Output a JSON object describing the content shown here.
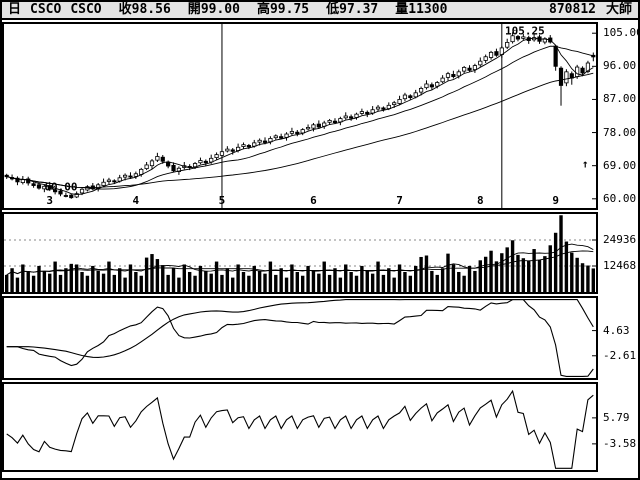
{
  "title_bar": {
    "period": "日",
    "symbol": "CSCO",
    "symbol_repeat": "CSCO",
    "fields": [
      {
        "label": "收",
        "value": "98.56"
      },
      {
        "label": "開",
        "value": "99.00"
      },
      {
        "label": "高",
        "value": "99.75"
      },
      {
        "label": "低",
        "value": "97.37"
      },
      {
        "label": "量",
        "value": "11300"
      }
    ],
    "date": "870812",
    "brand": "大師"
  },
  "chart_data": [
    {
      "type": "candlestick",
      "name": "daily-price",
      "ylim": [
        57.5,
        107.5
      ],
      "ma_periods": [
        5,
        15,
        45
      ],
      "vlines_days": [
        40,
        92
      ],
      "month_labels": [
        {
          "label": "3",
          "day": 8
        },
        {
          "label": "4",
          "day": 24
        },
        {
          "label": "5",
          "day": 40
        },
        {
          "label": "6",
          "day": 57
        },
        {
          "label": "7",
          "day": 73
        },
        {
          "label": "8",
          "day": 88
        },
        {
          "label": "9",
          "day": 102
        }
      ],
      "annotations": [
        {
          "text": "105.25",
          "day": 92.6,
          "price": 104.6,
          "anchor": "start"
        },
        {
          "text": "60.00",
          "day": 7,
          "price": 62.3,
          "anchor": "start"
        },
        {
          "text": "↑",
          "day": 107.5,
          "price": 68.5,
          "anchor": "middle"
        }
      ],
      "y_axis": [
        {
          "text": "105.00",
          "value": 105
        },
        {
          "text": "96.00",
          "value": 96
        },
        {
          "text": "87.00",
          "value": 87
        },
        {
          "text": "78.00",
          "value": 78
        },
        {
          "text": "69.00",
          "value": 69
        },
        {
          "text": "60.00",
          "value": 60
        }
      ],
      "ohlc": [
        [
          66.4,
          66.8,
          65.4,
          66.0
        ],
        [
          65.8,
          66.6,
          65.0,
          65.4
        ],
        [
          65.6,
          66.1,
          63.7,
          64.6
        ],
        [
          64.4,
          66.2,
          63.9,
          65.2
        ],
        [
          65.4,
          66.0,
          63.6,
          64.3
        ],
        [
          64.1,
          64.5,
          63.0,
          63.6
        ],
        [
          63.8,
          64.6,
          62.5,
          62.9
        ],
        [
          62.7,
          63.9,
          61.8,
          63.4
        ],
        [
          63.6,
          64.6,
          62.1,
          62.6
        ],
        [
          62.4,
          63.0,
          61.2,
          61.9
        ],
        [
          62.1,
          62.5,
          60.7,
          61.3
        ],
        [
          60.9,
          61.7,
          60.4,
          60.8
        ],
        [
          61.0,
          61.3,
          60.0,
          60.3
        ],
        [
          60.5,
          62.0,
          60.2,
          61.4
        ],
        [
          61.6,
          63.2,
          61.0,
          62.6
        ],
        [
          62.4,
          63.7,
          62.0,
          63.3
        ],
        [
          63.5,
          64.3,
          62.3,
          62.7
        ],
        [
          62.9,
          64.3,
          62.0,
          63.8
        ],
        [
          63.6,
          65.5,
          63.1,
          64.5
        ],
        [
          64.7,
          65.7,
          64.0,
          65.1
        ],
        [
          64.9,
          65.3,
          64.0,
          64.6
        ],
        [
          64.8,
          66.5,
          64.4,
          65.7
        ],
        [
          65.9,
          66.9,
          65.0,
          66.4
        ],
        [
          66.2,
          67.2,
          65.4,
          65.9
        ],
        [
          66.1,
          67.4,
          65.4,
          66.8
        ],
        [
          66.6,
          68.4,
          66.0,
          68.0
        ],
        [
          68.2,
          70.0,
          67.8,
          69.2
        ],
        [
          69.0,
          70.8,
          68.1,
          70.3
        ],
        [
          70.5,
          72.5,
          70.0,
          71.5
        ],
        [
          71.3,
          71.9,
          69.5,
          70.2
        ],
        [
          70.0,
          70.4,
          68.3,
          68.9
        ],
        [
          69.1,
          69.9,
          67.2,
          67.6
        ],
        [
          67.4,
          68.8,
          66.5,
          68.3
        ],
        [
          68.5,
          70.0,
          68.0,
          69.0
        ],
        [
          68.8,
          69.4,
          67.8,
          68.5
        ],
        [
          68.7,
          70.0,
          68.1,
          69.6
        ],
        [
          69.8,
          71.2,
          69.4,
          70.4
        ],
        [
          70.2,
          70.7,
          68.9,
          69.8
        ],
        [
          70.0,
          72.0,
          69.5,
          71.0
        ],
        [
          71.2,
          72.6,
          70.5,
          72.0
        ],
        [
          71.8,
          73.2,
          71.2,
          72.8
        ],
        [
          73.0,
          74.3,
          72.6,
          73.5
        ],
        [
          73.3,
          73.8,
          72.0,
          72.9
        ],
        [
          73.1,
          75.0,
          72.6,
          74.0
        ],
        [
          74.2,
          75.3,
          73.5,
          74.7
        ],
        [
          74.5,
          74.9,
          73.5,
          74.1
        ],
        [
          74.3,
          76.0,
          73.9,
          75.2
        ],
        [
          75.4,
          76.4,
          74.5,
          75.9
        ],
        [
          75.7,
          76.7,
          74.8,
          75.3
        ],
        [
          75.5,
          77.0,
          74.8,
          76.4
        ],
        [
          76.6,
          77.5,
          76.0,
          77.1
        ],
        [
          76.9,
          77.7,
          76.1,
          76.5
        ],
        [
          76.7,
          78.1,
          75.8,
          77.6
        ],
        [
          77.8,
          79.3,
          77.3,
          78.3
        ],
        [
          78.1,
          78.7,
          77.0,
          77.7
        ],
        [
          77.9,
          79.2,
          77.3,
          78.8
        ],
        [
          79.0,
          80.2,
          78.6,
          79.4
        ],
        [
          79.2,
          80.6,
          78.3,
          80.1
        ],
        [
          80.3,
          81.3,
          79.0,
          79.5
        ],
        [
          79.7,
          81.2,
          79.0,
          80.6
        ],
        [
          80.8,
          81.7,
          80.2,
          81.3
        ],
        [
          81.1,
          81.9,
          80.3,
          80.7
        ],
        [
          80.9,
          82.3,
          80.0,
          81.8
        ],
        [
          82.0,
          83.5,
          81.5,
          82.5
        ],
        [
          82.3,
          82.9,
          81.2,
          81.9
        ],
        [
          82.1,
          83.4,
          81.5,
          83.0
        ],
        [
          83.2,
          84.5,
          82.8,
          83.7
        ],
        [
          83.5,
          84.0,
          82.2,
          83.1
        ],
        [
          83.3,
          85.2,
          82.8,
          84.2
        ],
        [
          84.4,
          85.5,
          83.7,
          84.9
        ],
        [
          84.7,
          85.1,
          83.7,
          84.3
        ],
        [
          84.5,
          86.2,
          84.1,
          85.4
        ],
        [
          85.6,
          86.6,
          84.7,
          86.1
        ],
        [
          85.9,
          88.0,
          85.4,
          87.0
        ],
        [
          87.2,
          88.8,
          86.5,
          88.2
        ],
        [
          88.0,
          88.4,
          86.9,
          87.5
        ],
        [
          87.7,
          89.6,
          87.3,
          88.8
        ],
        [
          89.0,
          90.5,
          88.1,
          90.0
        ],
        [
          90.2,
          92.2,
          89.7,
          91.2
        ],
        [
          91.0,
          91.6,
          89.7,
          90.4
        ],
        [
          90.6,
          92.0,
          90.0,
          91.6
        ],
        [
          91.8,
          93.6,
          91.4,
          92.8
        ],
        [
          93.0,
          94.5,
          92.1,
          94.0
        ],
        [
          93.8,
          94.8,
          92.7,
          93.2
        ],
        [
          93.4,
          95.1,
          92.7,
          94.5
        ],
        [
          94.7,
          96.1,
          94.1,
          95.7
        ],
        [
          95.5,
          96.3,
          94.5,
          94.9
        ],
        [
          95.1,
          96.7,
          94.2,
          96.2
        ],
        [
          96.4,
          98.4,
          95.9,
          97.4
        ],
        [
          97.6,
          99.2,
          96.9,
          98.6
        ],
        [
          98.4,
          100.2,
          97.8,
          99.8
        ],
        [
          100.0,
          100.8,
          98.6,
          99.0
        ],
        [
          99.2,
          101.5,
          98.3,
          101.0
        ],
        [
          101.2,
          103.5,
          100.7,
          102.5
        ],
        [
          102.7,
          105.25,
          102.2,
          104.3
        ],
        [
          104.1,
          104.5,
          102.8,
          103.4
        ],
        [
          103.6,
          104.8,
          103.2,
          104.0
        ],
        [
          103.8,
          104.3,
          102.1,
          103.0
        ],
        [
          103.2,
          104.8,
          102.7,
          103.8
        ],
        [
          104.0,
          104.6,
          102.1,
          102.8
        ],
        [
          102.6,
          103.9,
          102.0,
          103.5
        ],
        [
          103.7,
          104.5,
          102.2,
          102.6
        ],
        [
          101.5,
          101.8,
          94.8,
          96.0
        ],
        [
          95.5,
          96.0,
          85.3,
          90.8
        ],
        [
          91.5,
          95.2,
          90.6,
          94.5
        ],
        [
          94.0,
          94.6,
          91.0,
          92.8
        ],
        [
          93.2,
          96.4,
          92.6,
          95.8
        ],
        [
          95.5,
          96.0,
          93.3,
          94.2
        ],
        [
          94.6,
          97.5,
          94.1,
          96.9
        ],
        [
          99.0,
          99.75,
          97.37,
          98.56
        ]
      ]
    },
    {
      "type": "bar",
      "name": "volume",
      "ylim": [
        0,
        37404
      ],
      "ma_periods": [
        8,
        20
      ],
      "y_axis": [
        {
          "text": "24936",
          "value": 24936
        },
        {
          "text": "12468",
          "value": 12468
        }
      ],
      "values": [
        8200,
        11400,
        6900,
        13200,
        9600,
        7800,
        12500,
        10100,
        8800,
        14600,
        8200,
        11400,
        13500,
        13200,
        9600,
        7800,
        12500,
        10100,
        8800,
        14600,
        8200,
        11400,
        6900,
        13200,
        9600,
        7800,
        16500,
        18200,
        15800,
        12900,
        8200,
        11400,
        6900,
        13200,
        9600,
        7800,
        12500,
        10100,
        8800,
        14600,
        8200,
        11400,
        6900,
        13200,
        9600,
        7800,
        12500,
        10100,
        8800,
        14600,
        8200,
        11400,
        6900,
        13200,
        9600,
        7800,
        12500,
        10100,
        8800,
        14600,
        8200,
        11400,
        6900,
        13200,
        9600,
        7800,
        12500,
        10100,
        8800,
        14600,
        8200,
        11400,
        6900,
        13200,
        9600,
        7800,
        12500,
        16800,
        17500,
        10100,
        8200,
        11400,
        18400,
        13200,
        9600,
        7800,
        12500,
        10100,
        15200,
        16900,
        19800,
        14700,
        18600,
        21400,
        24800,
        17800,
        16200,
        14900,
        20600,
        15400,
        17200,
        22400,
        28400,
        36800,
        24200,
        18900,
        16400,
        13800,
        12700,
        11300
      ]
    },
    {
      "type": "line",
      "name": "oscillator-1",
      "ylim": [
        -9,
        14
      ],
      "series": [
        {
          "p1": 3,
          "p2": 18,
          "scale": 2.2
        },
        {
          "p1": 5,
          "p2": 30,
          "scale": 2.6,
          "smooth": 12
        }
      ],
      "y_axis": [
        {
          "text": "4.63",
          "value": 4.63
        },
        {
          "text": "-2.61",
          "value": -2.61
        }
      ]
    },
    {
      "type": "line",
      "name": "oscillator-2",
      "ylim": [
        -13,
        18
      ],
      "series": [
        {
          "p1": 1,
          "p2": 6,
          "scale": 4.5
        }
      ],
      "y_axis": [
        {
          "text": "5.79",
          "value": 5.79
        },
        {
          "text": "-3.58",
          "value": -3.58
        }
      ]
    }
  ]
}
